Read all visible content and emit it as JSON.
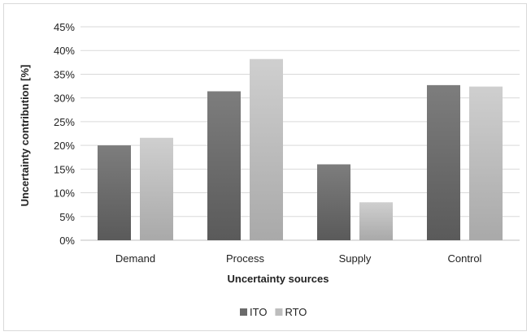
{
  "chart_data": {
    "type": "bar",
    "categories": [
      "Demand",
      "Process",
      "Supply",
      "Control"
    ],
    "series": [
      {
        "name": "ITO",
        "values": [
          20.0,
          31.4,
          16.0,
          32.7
        ],
        "color": "#6b6b6b"
      },
      {
        "name": "RTO",
        "values": [
          21.6,
          38.2,
          8.0,
          32.4
        ],
        "color": "#bdbdbd"
      }
    ],
    "title": "",
    "xlabel": "Uncertainty sources",
    "ylabel": "Uncertainty contribution [%]",
    "ylim": [
      0,
      45
    ],
    "yticks": [
      "0%",
      "5%",
      "10%",
      "15%",
      "20%",
      "25%",
      "30%",
      "35%",
      "40%",
      "45%"
    ],
    "grid": true,
    "legend_position": "bottom"
  }
}
